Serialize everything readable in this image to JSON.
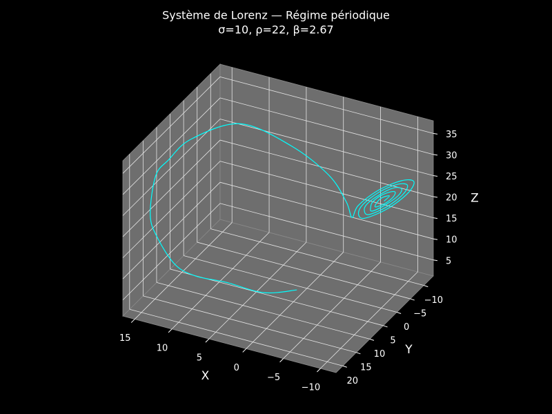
{
  "chart_data": {
    "type": "line3d",
    "title": "Système de Lorenz — Régime périodique",
    "subtitle": "σ=10, ρ=22, β=2.67",
    "xlabel": "X",
    "ylabel": "Y",
    "zlabel": "Z",
    "color": "#00ffff",
    "grid": true,
    "xlim": [
      -12.1,
      16.6
    ],
    "ylim": [
      -13.5,
      22.5
    ],
    "zlim": [
      1.2,
      38
    ],
    "xticks": [
      {
        "value": -10,
        "label": "−10"
      },
      {
        "value": -5,
        "label": "−5"
      },
      0,
      5,
      10,
      15
    ],
    "yticks": [
      {
        "value": -10,
        "label": "−10"
      },
      {
        "value": -5,
        "label": "−5"
      },
      0,
      5,
      10,
      15,
      20
    ],
    "zticks": [
      5,
      10,
      15,
      20,
      25,
      30,
      35
    ],
    "x": [
      1,
      4,
      8,
      11,
      13,
      15,
      16,
      16,
      15,
      13,
      9,
      4,
      0,
      -2,
      -3.7,
      -3.9,
      -6.1,
      -9.2,
      -11.3,
      -11.1,
      -8.9,
      -5.8,
      -4.5,
      -4.6,
      -6.4,
      -8.8,
      -10.5,
      -10.4,
      -8.6,
      -6.2,
      -5.2,
      -5.3,
      -6.7,
      -8.5,
      -9.8,
      -9.7,
      -8.3,
      -6.5,
      -6.0,
      -6.0,
      -6.9,
      -8.2,
      -9.0,
      -9.0,
      -8.1,
      -6.8,
      -6.7,
      -7.2,
      -8.3,
      -7.8
    ],
    "y": [
      1,
      5,
      8,
      11,
      13,
      14,
      14,
      12,
      10,
      7,
      0,
      -5,
      -8,
      -9,
      -6.5,
      -8.2,
      -9.5,
      -9.6,
      -8.5,
      -6.8,
      -5.5,
      -5.4,
      -6.7,
      -8.1,
      -9.1,
      -9.2,
      -8.3,
      -6.9,
      -5.9,
      -5.8,
      -6.9,
      -7.9,
      -8.7,
      -8.8,
      -8.1,
      -7.1,
      -6.3,
      -6.2,
      -7.1,
      -7.8,
      -8.3,
      -8.3,
      -7.9,
      -7.2,
      -6.7,
      -6.7,
      -7.3,
      -7.9,
      -7.7,
      -7.1
    ],
    "z": [
      1,
      1.5,
      4,
      6,
      9,
      15,
      20,
      28,
      31,
      35,
      36,
      30,
      23,
      17,
      15.6,
      17.4,
      21.2,
      24.9,
      26.4,
      24.6,
      20.8,
      17.1,
      16.7,
      18.1,
      21.2,
      24.1,
      25.3,
      23.9,
      20.8,
      17.9,
      17.8,
      18.8,
      21.1,
      23.4,
      24.2,
      23.2,
      20.9,
      18.6,
      18.8,
      19.5,
      21.1,
      22.6,
      23.2,
      22.5,
      20.9,
      19.4,
      19.9,
      21.0,
      22.1,
      21.0
    ]
  }
}
